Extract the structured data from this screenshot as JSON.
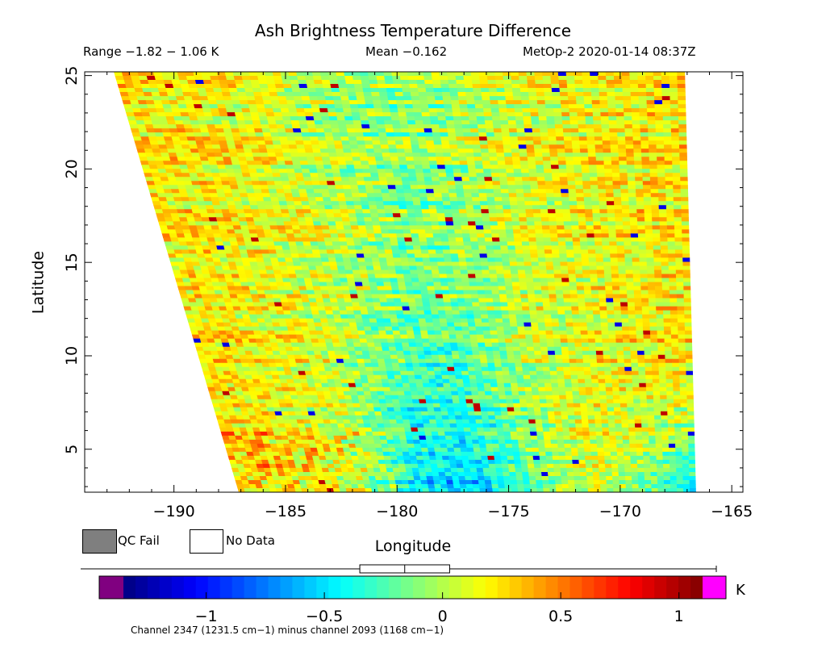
{
  "header": {
    "title": "Ash Brightness Temperature Difference",
    "range": "Range −1.82 − 1.06 K",
    "mean": "Mean −0.162",
    "satellite_time": "MetOp-2 2020-01-14 08:37Z"
  },
  "axes": {
    "xlabel": "Longitude",
    "ylabel": "Latitude",
    "xlim": [
      -194,
      -164.5
    ],
    "ylim": [
      2.7,
      25.2
    ],
    "x_ticks": [
      -190,
      -185,
      -180,
      -175,
      -170,
      -165
    ],
    "x_tick_labels": [
      "−190",
      "−185",
      "−180",
      "−175",
      "−170",
      "−165"
    ],
    "y_ticks": [
      5,
      10,
      15,
      20,
      25
    ],
    "y_tick_labels": [
      "5",
      "10",
      "15",
      "20",
      "25"
    ]
  },
  "swath": {
    "corners_lonlat": [
      [
        -192.7,
        25.2
      ],
      [
        -167.1,
        25.2
      ],
      [
        -166.6,
        2.7
      ],
      [
        -187.1,
        2.7
      ]
    ],
    "rows": 104,
    "cols": 72
  },
  "legend": {
    "qc_fail_label": "QC Fail",
    "no_data_label": "No Data",
    "qc_fail_color": "#7f7f7f",
    "no_data_color": "#ffffff"
  },
  "colorbar": {
    "min": -1.35,
    "max": 1.1,
    "ticks": [
      -1,
      -0.5,
      0,
      0.5,
      1
    ],
    "tick_labels": [
      "−1",
      "−0.5",
      "0",
      "0.5",
      "1"
    ],
    "unit": "K",
    "under_color": "#800080",
    "over_color": "#ff00ff",
    "distribution_box": {
      "q1": -0.35,
      "median": -0.16,
      "q3": 0.03,
      "whisker_min": -1.82,
      "whisker_max": 1.06
    }
  },
  "footer": {
    "channel_note": "Channel 2347 (1231.5 cm−1) minus channel 2093 (1168 cm−1)"
  }
}
